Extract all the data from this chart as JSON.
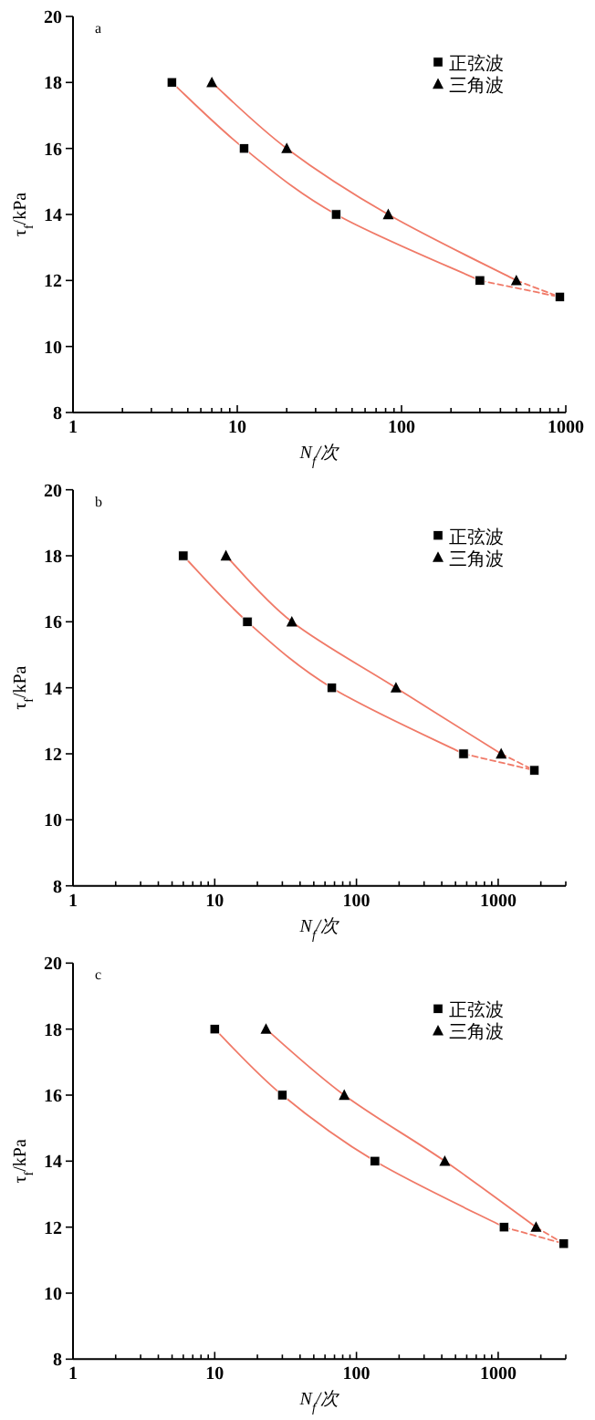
{
  "chart_data": [
    {
      "type": "scatter",
      "xlabel": "N$_{f}$/次",
      "ylabel": "τ$_{f}$/kPa",
      "annotations": [
        "a"
      ],
      "log": "x",
      "xlim": [
        1,
        1000
      ],
      "ylim": [
        8,
        20
      ],
      "yticks": [
        8,
        10,
        12,
        14,
        16,
        18,
        20
      ],
      "grid": false,
      "legend": "top right",
      "xticks": [
        1,
        {
          "value": 2,
          "label": null
        },
        {
          "value": 3,
          "label": null
        },
        {
          "value": 4,
          "label": null
        },
        {
          "value": 5,
          "label": null
        },
        {
          "value": 6,
          "label": null
        },
        {
          "value": 7,
          "label": null
        },
        {
          "value": 8,
          "label": null
        },
        {
          "value": 9,
          "label": null
        },
        10,
        {
          "value": 20,
          "label": null
        },
        {
          "value": 30,
          "label": null
        },
        {
          "value": 40,
          "label": null
        },
        {
          "value": 50,
          "label": null
        },
        {
          "value": 60,
          "label": null
        },
        {
          "value": 70,
          "label": null
        },
        {
          "value": 80,
          "label": null
        },
        {
          "value": 90,
          "label": null
        },
        100,
        {
          "value": 200,
          "label": null
        },
        {
          "value": 300,
          "label": null
        },
        {
          "value": 400,
          "label": null
        },
        {
          "value": 500,
          "label": null
        },
        {
          "value": 600,
          "label": null
        },
        {
          "value": 700,
          "label": null
        },
        {
          "value": 800,
          "label": null
        },
        {
          "value": 900,
          "label": null
        },
        1000
      ],
      "series": [
        {
          "type": "line",
          "color": "#f07a68",
          "line_style": "solid",
          "x": [
            4,
            11,
            40,
            300
          ],
          "values": [
            18,
            16,
            14,
            12
          ]
        },
        {
          "type": "line",
          "color": "#f07a68",
          "line_style": "dashed",
          "x": [
            300,
            920
          ],
          "values": [
            12,
            11.5
          ]
        },
        {
          "type": "line",
          "color": "#f07a68",
          "line_style": "solid",
          "x": [
            7,
            20,
            83,
            500
          ],
          "values": [
            18,
            16,
            14,
            12
          ]
        },
        {
          "type": "line",
          "color": "#f07a68",
          "line_style": "dashed",
          "x": [
            500,
            920
          ],
          "values": [
            12,
            11.5
          ]
        },
        {
          "name": "正弦波",
          "marker": "square",
          "color": "#000000",
          "x": [
            4,
            11,
            40,
            300,
            920
          ],
          "values": [
            18,
            16,
            14,
            12,
            11.5
          ]
        },
        {
          "name": "三角波",
          "marker": "triangle",
          "color": "#000000",
          "x": [
            7,
            20,
            83,
            500
          ],
          "values": [
            18,
            16,
            14,
            12
          ]
        }
      ]
    },
    {
      "type": "scatter",
      "xlabel": "N$_{f}$/次",
      "ylabel": "τ$_{f}$/kPa",
      "annotations": [
        "b"
      ],
      "log": "x",
      "xlim": [
        1,
        3000
      ],
      "ylim": [
        8,
        20
      ],
      "yticks": [
        8,
        10,
        12,
        14,
        16,
        18,
        20
      ],
      "grid": false,
      "legend": "top right",
      "xticks": [
        1,
        {
          "value": 2,
          "label": null
        },
        {
          "value": 3,
          "label": null
        },
        {
          "value": 4,
          "label": null
        },
        {
          "value": 5,
          "label": null
        },
        {
          "value": 6,
          "label": null
        },
        {
          "value": 7,
          "label": null
        },
        {
          "value": 8,
          "label": null
        },
        {
          "value": 9,
          "label": null
        },
        10,
        {
          "value": 20,
          "label": null
        },
        {
          "value": 30,
          "label": null
        },
        {
          "value": 40,
          "label": null
        },
        {
          "value": 50,
          "label": null
        },
        {
          "value": 60,
          "label": null
        },
        {
          "value": 70,
          "label": null
        },
        {
          "value": 80,
          "label": null
        },
        {
          "value": 90,
          "label": null
        },
        100,
        {
          "value": 200,
          "label": null
        },
        {
          "value": 300,
          "label": null
        },
        {
          "value": 400,
          "label": null
        },
        {
          "value": 500,
          "label": null
        },
        {
          "value": 600,
          "label": null
        },
        {
          "value": 700,
          "label": null
        },
        {
          "value": 800,
          "label": null
        },
        {
          "value": 900,
          "label": null
        },
        1000,
        {
          "value": 2000,
          "label": null
        },
        {
          "value": 3000,
          "label": null
        }
      ],
      "series": [
        {
          "type": "line",
          "color": "#f07a68",
          "line_style": "solid",
          "x": [
            6,
            17,
            67,
            570
          ],
          "values": [
            18,
            16,
            14,
            12
          ]
        },
        {
          "type": "line",
          "color": "#f07a68",
          "line_style": "dashed",
          "x": [
            570,
            1800
          ],
          "values": [
            12,
            11.5
          ]
        },
        {
          "type": "line",
          "color": "#f07a68",
          "line_style": "solid",
          "x": [
            12,
            35,
            190,
            1050
          ],
          "values": [
            18,
            16,
            14,
            12
          ]
        },
        {
          "type": "line",
          "color": "#f07a68",
          "line_style": "dashed",
          "x": [
            1050,
            1800
          ],
          "values": [
            12,
            11.5
          ]
        },
        {
          "name": "正弦波",
          "marker": "square",
          "color": "#000000",
          "x": [
            6,
            17,
            67,
            570,
            1800
          ],
          "values": [
            18,
            16,
            14,
            12,
            11.5
          ]
        },
        {
          "name": "三角波",
          "marker": "triangle",
          "color": "#000000",
          "x": [
            12,
            35,
            190,
            1050
          ],
          "values": [
            18,
            16,
            14,
            12
          ]
        }
      ]
    },
    {
      "type": "scatter",
      "xlabel": "N$_{f}$/次",
      "ylabel": "τ$_{f}$/kPa",
      "annotations": [
        "c"
      ],
      "log": "x",
      "xlim": [
        1,
        3000
      ],
      "ylim": [
        8,
        20
      ],
      "yticks": [
        8,
        10,
        12,
        14,
        16,
        18,
        20
      ],
      "grid": false,
      "legend": "top right",
      "xticks": [
        1,
        {
          "value": 2,
          "label": null
        },
        {
          "value": 3,
          "label": null
        },
        {
          "value": 4,
          "label": null
        },
        {
          "value": 5,
          "label": null
        },
        {
          "value": 6,
          "label": null
        },
        {
          "value": 7,
          "label": null
        },
        {
          "value": 8,
          "label": null
        },
        {
          "value": 9,
          "label": null
        },
        10,
        {
          "value": 20,
          "label": null
        },
        {
          "value": 30,
          "label": null
        },
        {
          "value": 40,
          "label": null
        },
        {
          "value": 50,
          "label": null
        },
        {
          "value": 60,
          "label": null
        },
        {
          "value": 70,
          "label": null
        },
        {
          "value": 80,
          "label": null
        },
        {
          "value": 90,
          "label": null
        },
        100,
        {
          "value": 200,
          "label": null
        },
        {
          "value": 300,
          "label": null
        },
        {
          "value": 400,
          "label": null
        },
        {
          "value": 500,
          "label": null
        },
        {
          "value": 600,
          "label": null
        },
        {
          "value": 700,
          "label": null
        },
        {
          "value": 800,
          "label": null
        },
        {
          "value": 900,
          "label": null
        },
        1000,
        {
          "value": 2000,
          "label": null
        },
        {
          "value": 3000,
          "label": null
        }
      ],
      "series": [
        {
          "type": "line",
          "color": "#f07a68",
          "line_style": "solid",
          "x": [
            10,
            30,
            135,
            1100
          ],
          "values": [
            18,
            16,
            14,
            12
          ]
        },
        {
          "type": "line",
          "color": "#f07a68",
          "line_style": "dashed",
          "x": [
            1100,
            2900
          ],
          "values": [
            12,
            11.5
          ]
        },
        {
          "type": "line",
          "color": "#f07a68",
          "line_style": "solid",
          "x": [
            23,
            82,
            420,
            1850
          ],
          "values": [
            18,
            16,
            14,
            12
          ]
        },
        {
          "type": "line",
          "color": "#f07a68",
          "line_style": "dashed",
          "x": [
            1850,
            2900
          ],
          "values": [
            12,
            11.5
          ]
        },
        {
          "name": "正弦波",
          "marker": "square",
          "color": "#000000",
          "x": [
            10,
            30,
            135,
            1100,
            2900
          ],
          "values": [
            18,
            16,
            14,
            12,
            11.5
          ]
        },
        {
          "name": "三角波",
          "marker": "triangle",
          "color": "#000000",
          "x": [
            23,
            82,
            420,
            1850
          ],
          "values": [
            18,
            16,
            14,
            12
          ]
        }
      ]
    }
  ]
}
